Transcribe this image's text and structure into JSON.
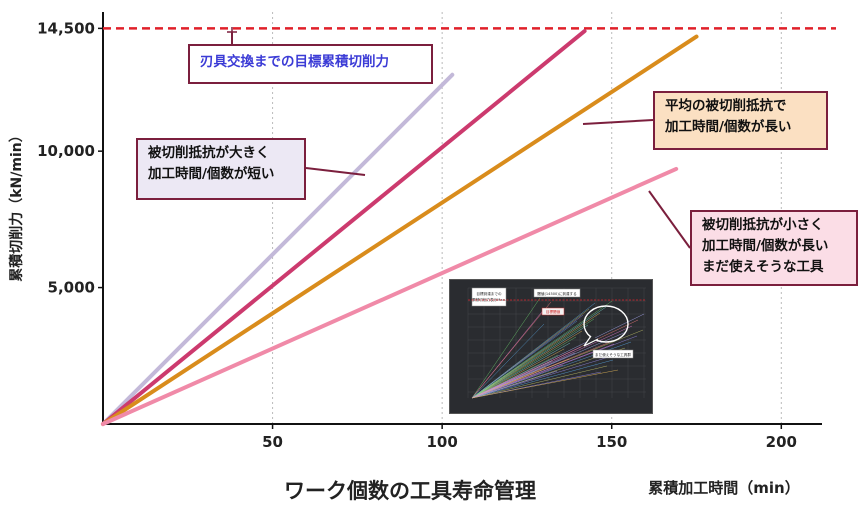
{
  "chart_data": {
    "type": "line",
    "title": "",
    "xlabel": "累積加工時間（min）",
    "ylabel": "累積切削力（kN/min）",
    "caption": "ワーク個数の工具寿命管理",
    "x_ticks": [
      50,
      100,
      150,
      200
    ],
    "y_ticks": [
      {
        "value": 5000,
        "label": "5,000"
      },
      {
        "value": 10000,
        "label": "10,000"
      },
      {
        "value": 14500,
        "label": "14,500"
      }
    ],
    "xlim": [
      0,
      212
    ],
    "ylim": [
      0,
      15100
    ],
    "threshold": {
      "value": 14500,
      "color": "#e0202a",
      "style": "dashed"
    },
    "series": [
      {
        "points": [
          [
            0,
            0
          ],
          [
            103,
            12800
          ]
        ],
        "color": "#c3b9d9"
      },
      {
        "points": [
          [
            0,
            0
          ],
          [
            142,
            14400
          ]
        ],
        "color": "#cc3a6e"
      },
      {
        "points": [
          [
            0,
            0
          ],
          [
            175,
            14200
          ]
        ],
        "color": "#d98c1c"
      },
      {
        "points": [
          [
            0,
            0
          ],
          [
            169,
            9350
          ]
        ],
        "color": "#f08aa8"
      }
    ],
    "callouts": [
      {
        "id": "target",
        "lines": [
          "刃具交換までの目標累積切削力"
        ]
      },
      {
        "id": "high",
        "lines": [
          "被切削抵抗が大きく",
          "加工時間/個数が短い"
        ]
      },
      {
        "id": "avg",
        "lines": [
          "平均の被切削抵抗で",
          "加工時間/個数が長い"
        ]
      },
      {
        "id": "low",
        "lines": [
          "被切削抵抗が小さく",
          "加工時間/個数が長い",
          "まだ使えそうな工具"
        ]
      }
    ],
    "inset": {
      "label_top_left": [
        "目標到達までの",
        "累積切削力表示Max."
      ],
      "label_top_mid": "閾値(14500)に到達する",
      "label_mid": "目標閾値",
      "label_bubble": "まだ使えそうな工具群"
    }
  }
}
